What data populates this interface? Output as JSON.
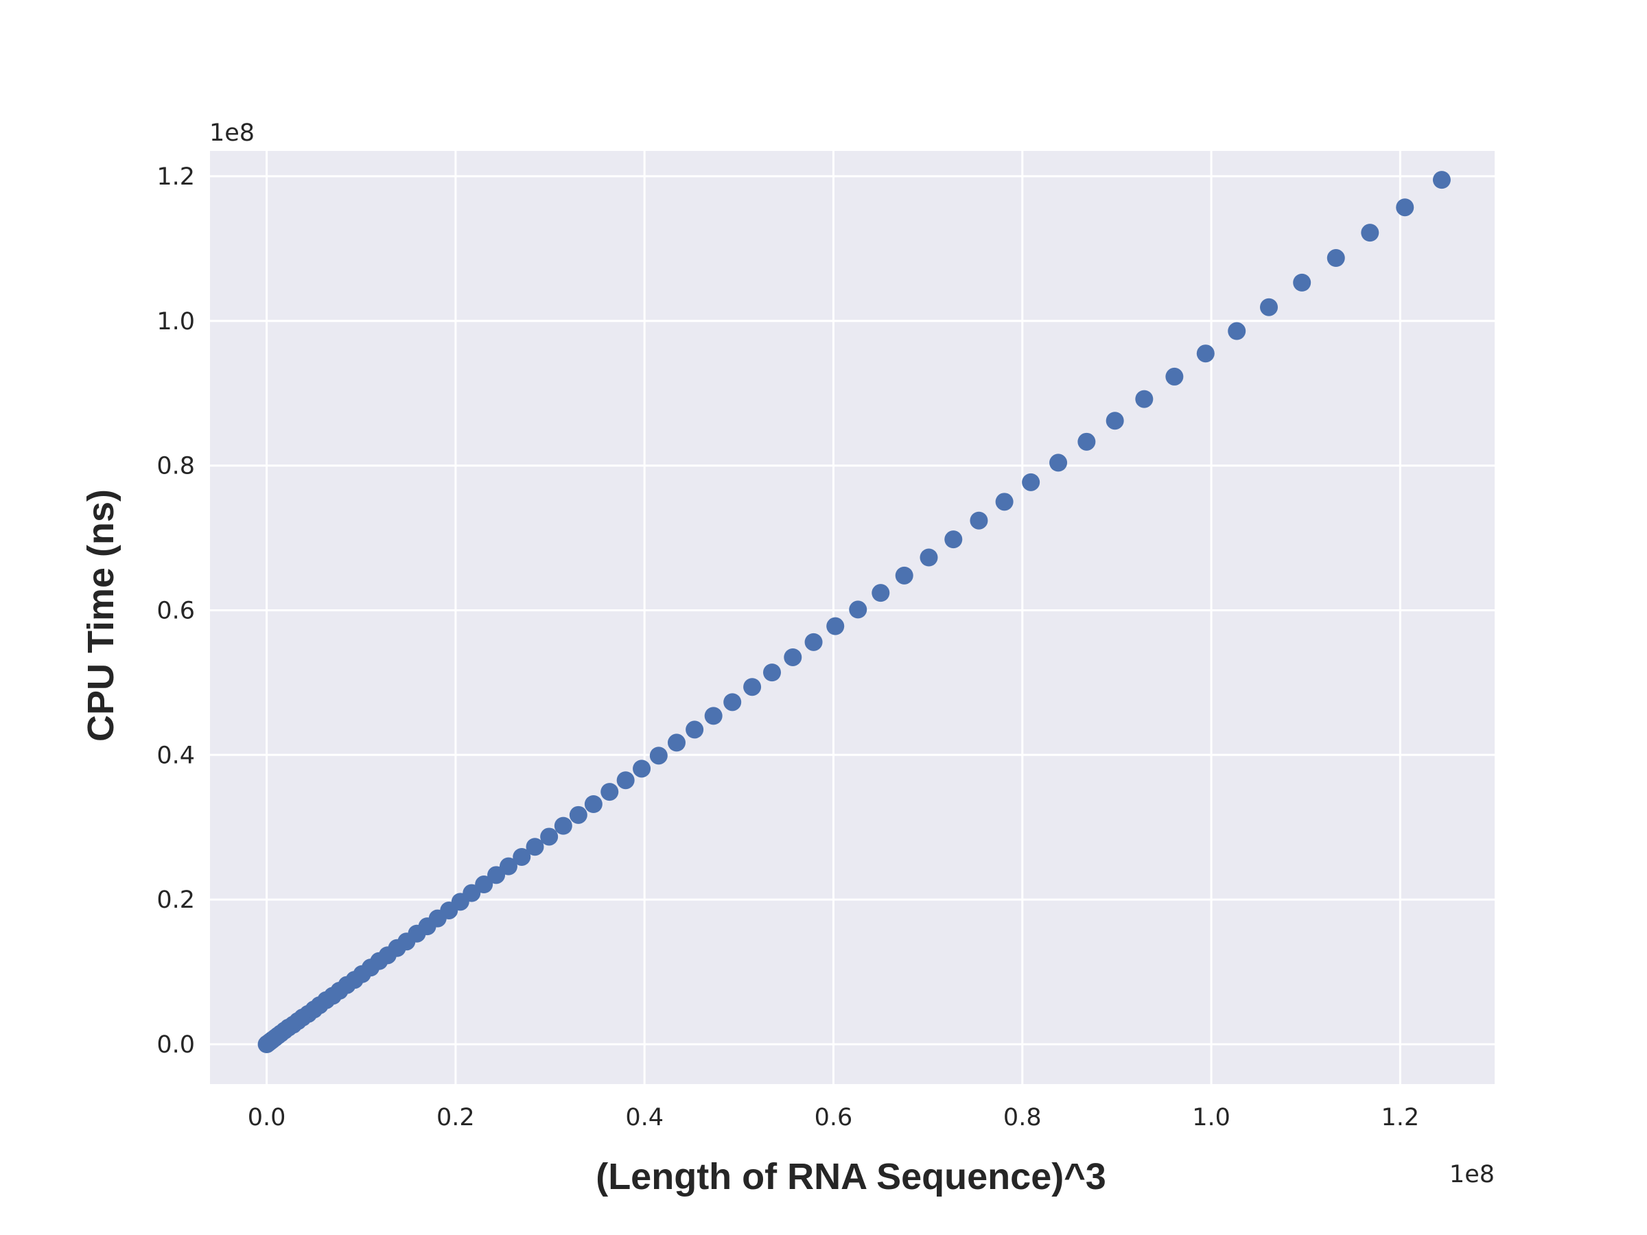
{
  "chart_data": {
    "type": "scatter",
    "title": "",
    "xlabel": "(Length of RNA Sequence)^3",
    "ylabel": "CPU Time (ns)",
    "x_offset_text": "1e8",
    "y_offset_text": "1e8",
    "xlim": [
      -0.06,
      1.3
    ],
    "ylim": [
      -0.055,
      1.235
    ],
    "x_ticks": [
      0.0,
      0.2,
      0.4,
      0.6,
      0.8,
      1.0,
      1.2
    ],
    "x_tick_labels": [
      "0.0",
      "0.2",
      "0.4",
      "0.6",
      "0.8",
      "1.0",
      "1.2"
    ],
    "y_ticks": [
      0.0,
      0.2,
      0.4,
      0.6,
      0.8,
      1.0,
      1.2
    ],
    "y_tick_labels": [
      "0.0",
      "0.2",
      "0.4",
      "0.6",
      "0.8",
      "1.0",
      "1.2"
    ],
    "grid": true,
    "colors": {
      "background": "#eaeaf2",
      "grid": "#ffffff",
      "marker": "#4c72b0",
      "text": "#262626"
    },
    "series": [
      {
        "x": [
          0.0,
          0.001,
          0.002,
          0.004,
          0.006,
          0.009,
          0.012,
          0.015,
          0.019,
          0.023,
          0.028,
          0.033,
          0.038,
          0.044,
          0.05,
          0.056,
          0.063,
          0.07,
          0.077,
          0.085,
          0.093,
          0.101,
          0.11,
          0.119,
          0.128,
          0.138,
          0.148,
          0.159,
          0.17,
          0.181,
          0.193,
          0.205,
          0.217,
          0.23,
          0.243,
          0.256,
          0.27,
          0.284,
          0.299,
          0.314,
          0.33,
          0.346,
          0.363,
          0.38,
          0.397,
          0.415,
          0.434,
          0.453,
          0.473,
          0.493,
          0.514,
          0.535,
          0.557,
          0.579,
          0.602,
          0.626,
          0.65,
          0.675,
          0.701,
          0.727,
          0.754,
          0.781,
          0.809,
          0.838,
          0.868,
          0.898,
          0.929,
          0.961,
          0.994,
          1.027,
          1.061,
          1.096,
          1.132,
          1.168,
          1.205,
          1.244
        ],
        "y": [
          0.0,
          0.001,
          0.002,
          0.004,
          0.006,
          0.009,
          0.012,
          0.015,
          0.019,
          0.023,
          0.027,
          0.032,
          0.037,
          0.042,
          0.048,
          0.054,
          0.061,
          0.067,
          0.074,
          0.082,
          0.089,
          0.097,
          0.106,
          0.115,
          0.123,
          0.133,
          0.142,
          0.153,
          0.163,
          0.174,
          0.185,
          0.197,
          0.209,
          0.221,
          0.234,
          0.246,
          0.259,
          0.273,
          0.287,
          0.302,
          0.317,
          0.332,
          0.349,
          0.365,
          0.381,
          0.399,
          0.417,
          0.435,
          0.454,
          0.473,
          0.494,
          0.514,
          0.535,
          0.556,
          0.578,
          0.601,
          0.624,
          0.648,
          0.673,
          0.698,
          0.724,
          0.75,
          0.777,
          0.804,
          0.833,
          0.862,
          0.892,
          0.923,
          0.955,
          0.986,
          1.019,
          1.053,
          1.087,
          1.122,
          1.157,
          1.195
        ]
      }
    ]
  }
}
